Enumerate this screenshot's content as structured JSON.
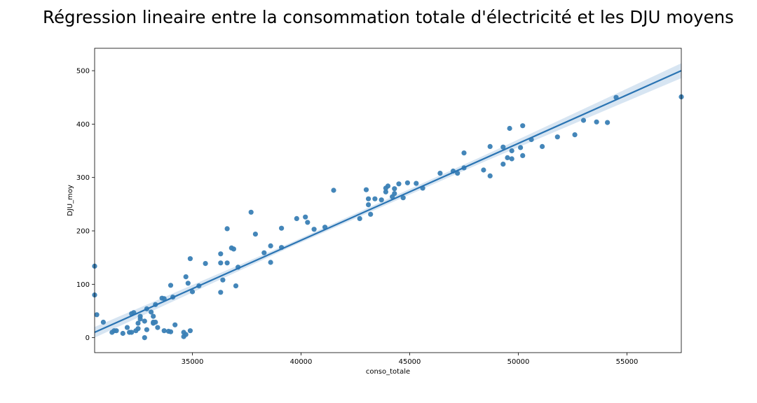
{
  "chart_data": {
    "type": "scatter",
    "title": "Régression lineaire entre la consommation totale d'électricité et les DJU moyens",
    "xlabel": "conso_totale",
    "ylabel": "DJU_moy",
    "xlim": [
      30500,
      57500
    ],
    "ylim": [
      -28,
      542
    ],
    "xticks": [
      35000,
      40000,
      45000,
      50000,
      55000
    ],
    "yticks": [
      0,
      100,
      200,
      300,
      400,
      500
    ],
    "grid": false,
    "legend": "none",
    "colors": {
      "points": "#3a7fb5",
      "line": "#2a74b3",
      "ci": "#c9dced"
    },
    "regression": {
      "x": [
        30500,
        57500
      ],
      "y": [
        10,
        500
      ],
      "ci_halfwidth": [
        10,
        4,
        6,
        14
      ]
    },
    "points": [
      [
        30500,
        134
      ],
      [
        30500,
        80
      ],
      [
        30600,
        43
      ],
      [
        30900,
        29
      ],
      [
        31300,
        10
      ],
      [
        31400,
        13
      ],
      [
        31500,
        13
      ],
      [
        31800,
        8
      ],
      [
        32000,
        19
      ],
      [
        32100,
        10
      ],
      [
        32200,
        45
      ],
      [
        32200,
        10
      ],
      [
        32300,
        47
      ],
      [
        32400,
        13
      ],
      [
        32500,
        17
      ],
      [
        32500,
        27
      ],
      [
        32600,
        35
      ],
      [
        32600,
        40
      ],
      [
        32800,
        31
      ],
      [
        32800,
        0
      ],
      [
        32900,
        15
      ],
      [
        32900,
        54
      ],
      [
        33100,
        48
      ],
      [
        33200,
        40
      ],
      [
        33200,
        29
      ],
      [
        33200,
        27
      ],
      [
        33300,
        29
      ],
      [
        33300,
        62
      ],
      [
        33400,
        19
      ],
      [
        33600,
        74
      ],
      [
        33700,
        73
      ],
      [
        33700,
        13
      ],
      [
        33900,
        12
      ],
      [
        34000,
        98
      ],
      [
        34000,
        11
      ],
      [
        34100,
        76
      ],
      [
        34200,
        24
      ],
      [
        34600,
        2
      ],
      [
        34600,
        10
      ],
      [
        34700,
        114
      ],
      [
        34700,
        6
      ],
      [
        34800,
        102
      ],
      [
        34900,
        13
      ],
      [
        34900,
        148
      ],
      [
        35000,
        86
      ],
      [
        35300,
        97
      ],
      [
        35600,
        139
      ],
      [
        36300,
        85
      ],
      [
        36300,
        140
      ],
      [
        36300,
        157
      ],
      [
        36400,
        108
      ],
      [
        36600,
        140
      ],
      [
        36600,
        204
      ],
      [
        36800,
        168
      ],
      [
        36900,
        166
      ],
      [
        37000,
        97
      ],
      [
        37100,
        132
      ],
      [
        37700,
        235
      ],
      [
        37900,
        194
      ],
      [
        38300,
        159
      ],
      [
        38600,
        172
      ],
      [
        38600,
        141
      ],
      [
        39100,
        205
      ],
      [
        39100,
        169
      ],
      [
        39800,
        223
      ],
      [
        40200,
        226
      ],
      [
        40300,
        216
      ],
      [
        40600,
        203
      ],
      [
        41100,
        207
      ],
      [
        41500,
        276
      ],
      [
        42700,
        223
      ],
      [
        43000,
        277
      ],
      [
        43100,
        260
      ],
      [
        43100,
        249
      ],
      [
        43200,
        231
      ],
      [
        43400,
        260
      ],
      [
        43700,
        258
      ],
      [
        43900,
        273
      ],
      [
        43900,
        280
      ],
      [
        44000,
        284
      ],
      [
        44200,
        264
      ],
      [
        44300,
        270
      ],
      [
        44300,
        279
      ],
      [
        44500,
        288
      ],
      [
        44700,
        262
      ],
      [
        44900,
        290
      ],
      [
        45300,
        289
      ],
      [
        45600,
        280
      ],
      [
        46400,
        308
      ],
      [
        47000,
        312
      ],
      [
        47200,
        308
      ],
      [
        47500,
        346
      ],
      [
        47500,
        318
      ],
      [
        48400,
        314
      ],
      [
        48700,
        358
      ],
      [
        48700,
        303
      ],
      [
        49300,
        357
      ],
      [
        49300,
        325
      ],
      [
        49500,
        337
      ],
      [
        49600,
        392
      ],
      [
        49700,
        350
      ],
      [
        49700,
        335
      ],
      [
        50100,
        356
      ],
      [
        50200,
        397
      ],
      [
        50200,
        341
      ],
      [
        50600,
        371
      ],
      [
        51100,
        358
      ],
      [
        51800,
        376
      ],
      [
        52600,
        380
      ],
      [
        53000,
        407
      ],
      [
        53600,
        404
      ],
      [
        54100,
        403
      ],
      [
        54500,
        450
      ],
      [
        57500,
        451
      ]
    ]
  }
}
